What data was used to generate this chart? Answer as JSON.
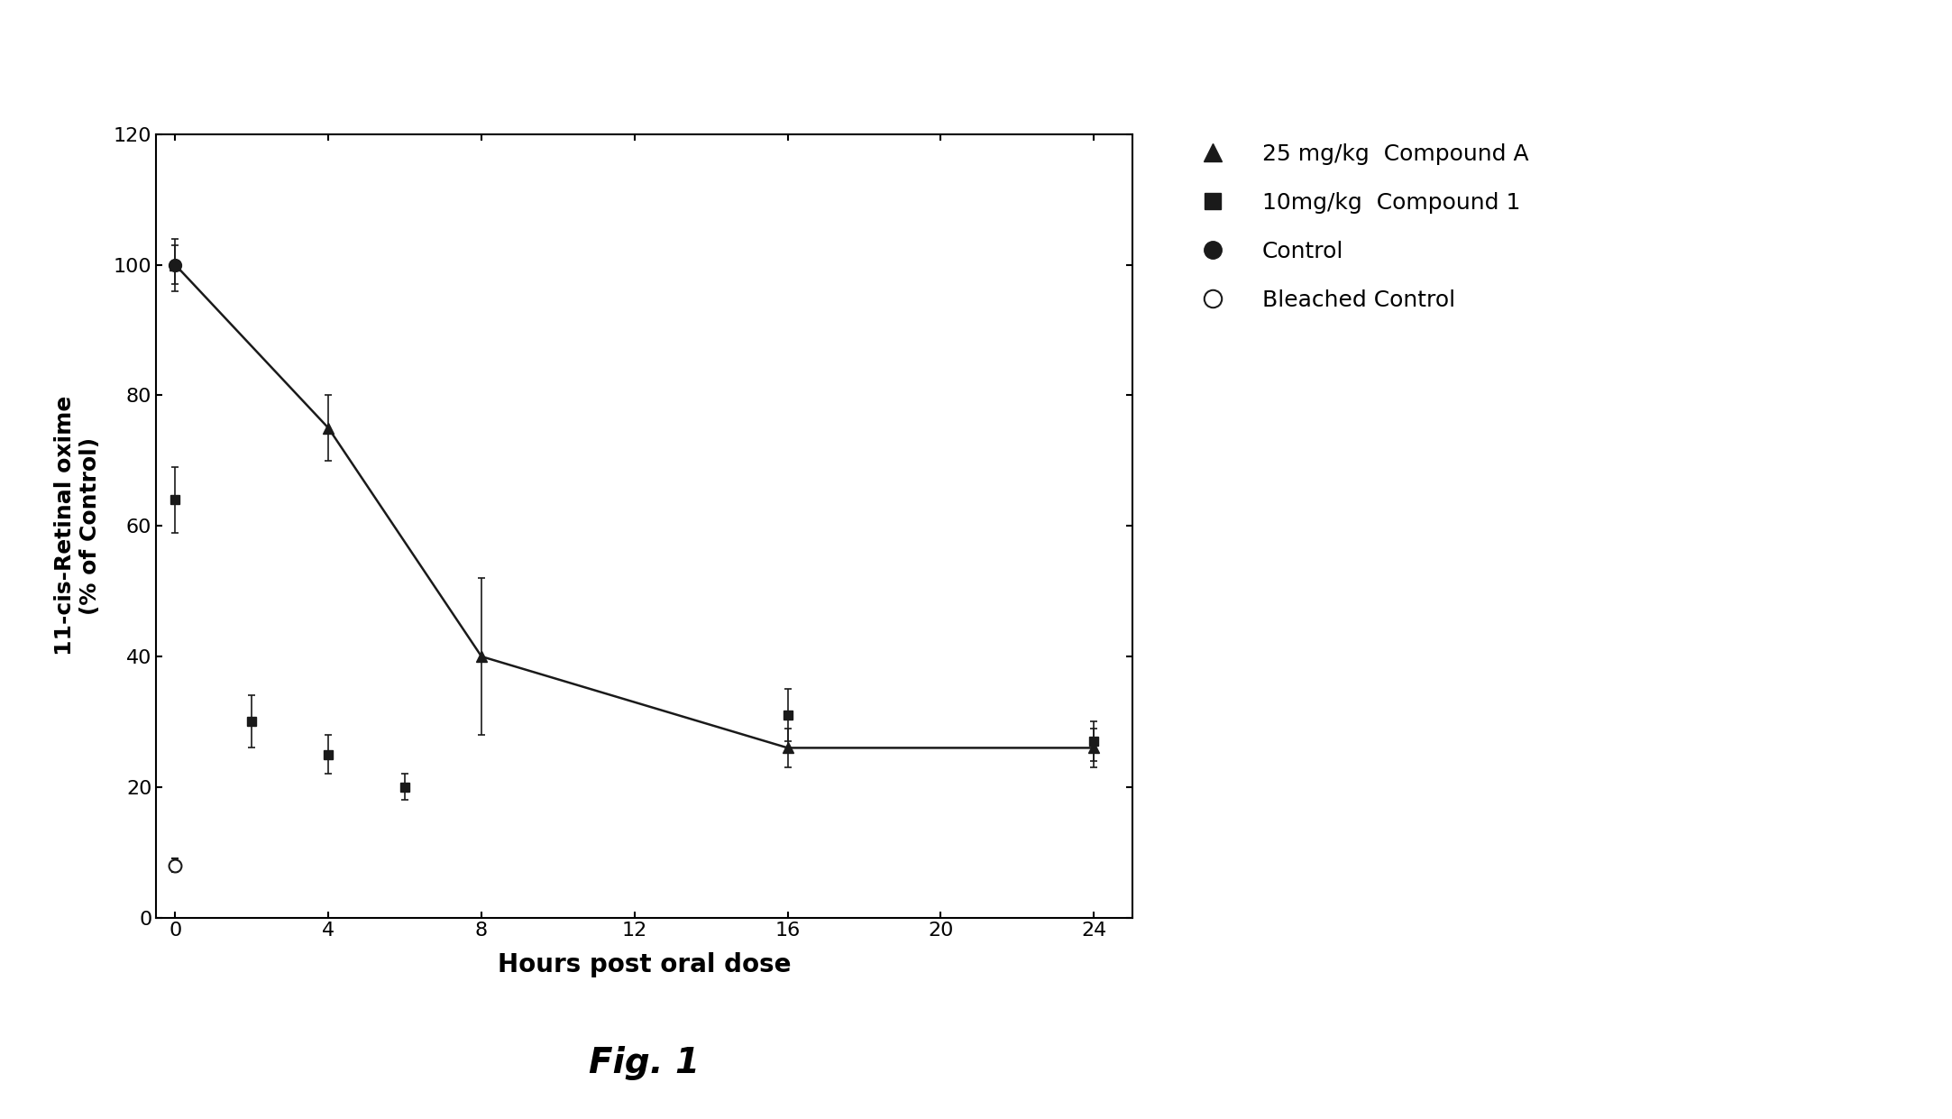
{
  "title": "Fig. 1",
  "xlabel": "Hours post oral dose",
  "ylabel": "11-cis-Retinal oxime\n(% of Control)",
  "ylim": [
    0,
    120
  ],
  "xlim": [
    -0.5,
    25
  ],
  "xticks": [
    0,
    4,
    8,
    12,
    16,
    20,
    24
  ],
  "yticks": [
    0,
    20,
    40,
    60,
    80,
    100,
    120
  ],
  "bg_color": "#ffffff",
  "compound_A_x": [
    0,
    4,
    8,
    16,
    24
  ],
  "compound_A_y": [
    100,
    75,
    40,
    26,
    26
  ],
  "compound_A_yerr": [
    3,
    5,
    12,
    3,
    3
  ],
  "compound_1_x": [
    0,
    2,
    4,
    6,
    16,
    24
  ],
  "compound_1_y": [
    64,
    30,
    25,
    20,
    31,
    27
  ],
  "compound_1_yerr": [
    5,
    4,
    3,
    2,
    4,
    3
  ],
  "control_x": [
    0
  ],
  "control_y": [
    100
  ],
  "control_yerr": [
    4
  ],
  "bleached_x": [
    0
  ],
  "bleached_y": [
    8
  ],
  "bleached_yerr": [
    1
  ],
  "legend_labels": [
    "25 mg/kg  Compound A",
    "10mg/kg  Compound 1",
    "Control",
    "Bleached Control"
  ],
  "color": "#1a1a1a",
  "fit_color": "#1a1a1a",
  "fig_width": 21.65,
  "fig_height": 12.41,
  "dpi": 100
}
